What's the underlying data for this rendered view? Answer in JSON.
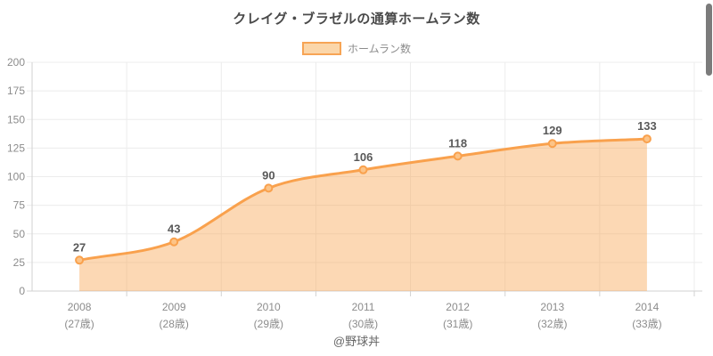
{
  "chart_data": {
    "type": "area",
    "title": "クレイグ・ブラゼルの通算ホームラン数",
    "legend": {
      "label": "ホームラン数"
    },
    "legend_position": "top",
    "categories": [
      {
        "year": "2008",
        "age": "(27歳)"
      },
      {
        "year": "2009",
        "age": "(28歳)"
      },
      {
        "year": "2010",
        "age": "(29歳)"
      },
      {
        "year": "2011",
        "age": "(30歳)"
      },
      {
        "year": "2012",
        "age": "(31歳)"
      },
      {
        "year": "2013",
        "age": "(32歳)"
      },
      {
        "year": "2014",
        "age": "(33歳)"
      }
    ],
    "series": [
      {
        "name": "ホームラン数",
        "values": [
          27,
          43,
          90,
          106,
          118,
          129,
          133
        ]
      }
    ],
    "xlabel": "",
    "ylabel": "",
    "ylim": [
      0,
      200
    ],
    "ytick_step": 25,
    "grid": true,
    "colors": {
      "line": "#f9a14d",
      "area": "rgba(249,161,77,0.42)",
      "point_fill": "#fcc488",
      "point_stroke": "#f9a14d",
      "swatch_fill": "#fbd6a9",
      "swatch_border": "#f7a455",
      "grid": "#ececec",
      "axis": "#d2d2d2",
      "tick_text": "#8c8c8c",
      "value_label": "#595959",
      "title_text": "#4a4a4a",
      "legend_text": "#8c8c8c",
      "footer_text": "#666666",
      "scrollbar": "#7b7b7b"
    }
  },
  "footer": {
    "credit": "@野球丼"
  }
}
